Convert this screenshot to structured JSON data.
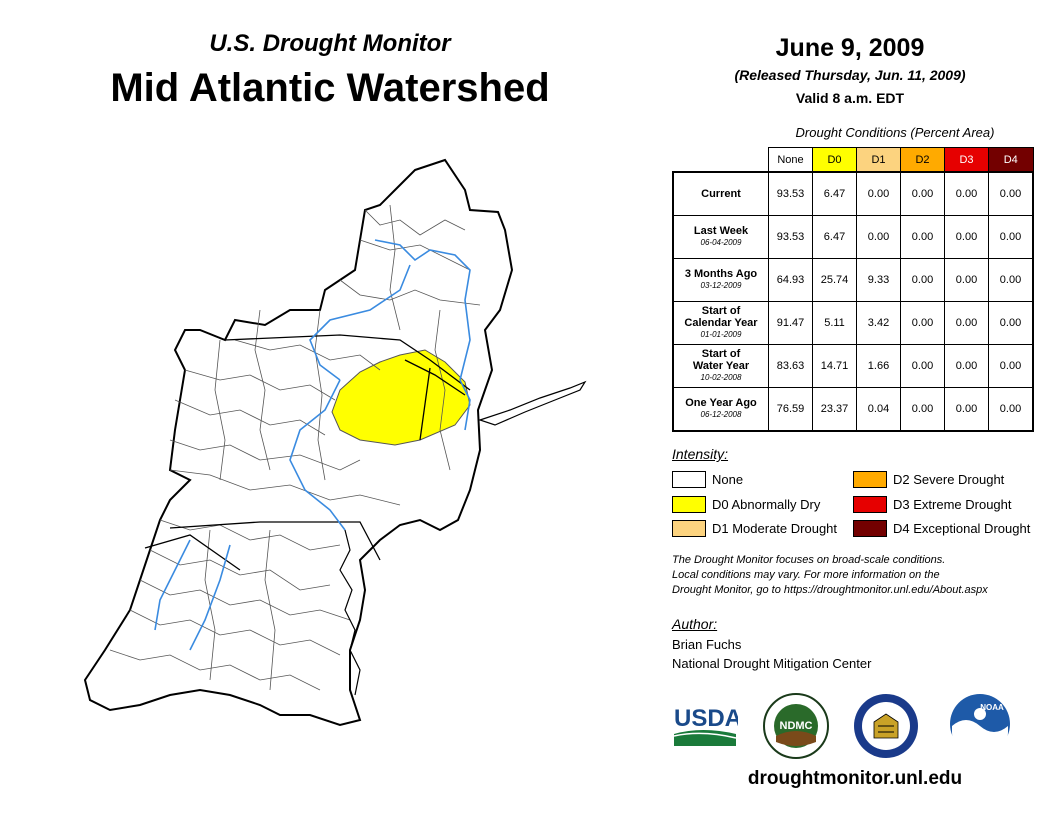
{
  "header": {
    "subtitle": "U.S. Drought Monitor",
    "title": "Mid Atlantic Watershed",
    "date": "June 9, 2009",
    "released": "(Released Thursday, Jun. 11, 2009)",
    "valid": "Valid 8 a.m. EDT"
  },
  "table": {
    "title": "Drought Conditions (Percent Area)",
    "columns": [
      {
        "label": "None",
        "color": "#ffffff",
        "text_color": "#000000"
      },
      {
        "label": "D0",
        "color": "#ffff00",
        "text_color": "#000000"
      },
      {
        "label": "D1",
        "color": "#fcd37f",
        "text_color": "#000000"
      },
      {
        "label": "D2",
        "color": "#ffaa00",
        "text_color": "#000000"
      },
      {
        "label": "D3",
        "color": "#e60000",
        "text_color": "#ffffff"
      },
      {
        "label": "D4",
        "color": "#730000",
        "text_color": "#ffffff"
      }
    ],
    "rows": [
      {
        "label": "Current",
        "label2": "",
        "date": "",
        "values": [
          "93.53",
          "6.47",
          "0.00",
          "0.00",
          "0.00",
          "0.00"
        ]
      },
      {
        "label": "Last Week",
        "label2": "",
        "date": "06-04-2009",
        "values": [
          "93.53",
          "6.47",
          "0.00",
          "0.00",
          "0.00",
          "0.00"
        ]
      },
      {
        "label": "3 Months Ago",
        "label2": "",
        "date": "03-12-2009",
        "values": [
          "64.93",
          "25.74",
          "9.33",
          "0.00",
          "0.00",
          "0.00"
        ]
      },
      {
        "label": "Start of",
        "label2": "Calendar Year",
        "date": "01-01-2009",
        "values": [
          "91.47",
          "5.11",
          "3.42",
          "0.00",
          "0.00",
          "0.00"
        ]
      },
      {
        "label": "Start of",
        "label2": "Water Year",
        "date": "10-02-2008",
        "values": [
          "83.63",
          "14.71",
          "1.66",
          "0.00",
          "0.00",
          "0.00"
        ]
      },
      {
        "label": "One Year Ago",
        "label2": "",
        "date": "06-12-2008",
        "values": [
          "76.59",
          "23.37",
          "0.04",
          "0.00",
          "0.00",
          "0.00"
        ]
      }
    ]
  },
  "legend": {
    "title": "Intensity:",
    "items": [
      {
        "label": "None",
        "color": "#ffffff"
      },
      {
        "label": "D0 Abnormally Dry",
        "color": "#ffff00"
      },
      {
        "label": "D1 Moderate Drought",
        "color": "#fcd37f"
      },
      {
        "label": "D2 Severe Drought",
        "color": "#ffaa00"
      },
      {
        "label": "D3 Extreme Drought",
        "color": "#e60000"
      },
      {
        "label": "D4 Exceptional Drought",
        "color": "#730000"
      }
    ]
  },
  "note": {
    "line1": "The Drought Monitor focuses on broad-scale conditions.",
    "line2": "Local conditions may vary. For more information on the",
    "line3": "Drought Monitor, go to https://droughtmonitor.unl.edu/About.aspx"
  },
  "author": {
    "title": "Author:",
    "name": "Brian Fuchs",
    "org": "National Drought Mitigation Center"
  },
  "logos": {
    "usda": "USDA",
    "ndmc": "NDMC",
    "noaa": "NOAA"
  },
  "website": "droughtmonitor.unl.edu",
  "colors": {
    "map_outline": "#000000",
    "county_lines": "#555555",
    "rivers": "#3a8be0",
    "d0_fill": "#ffff00"
  }
}
